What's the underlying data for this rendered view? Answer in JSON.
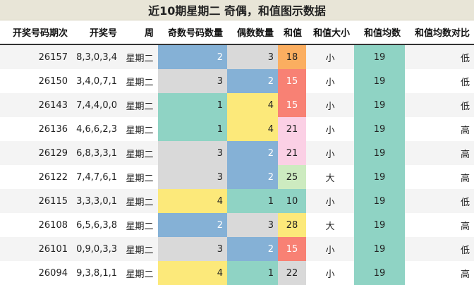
{
  "title": "近10期星期二 奇偶，和值图示数据",
  "headers": [
    "开奖号码期次",
    "开奖号",
    "周",
    "奇数号码数量",
    "偶数数量",
    "和值",
    "和值大小",
    "和值均数",
    "和值均数对比"
  ],
  "colors": {
    "count_1": "#8fd3c4",
    "count_2": "#85b1d6",
    "count_3": "#d9d9d9",
    "count_4": "#fce97a",
    "sum_avg": "#8fd3c4",
    "sum_10": "#8fd3c4",
    "sum_15": "#f88174",
    "sum_18": "#fbae60",
    "sum_21": "#fbd0e5",
    "sum_22": "#d9d9d9",
    "sum_25": "#cdebc0",
    "sum_28": "#fce97a"
  },
  "rows": [
    {
      "period": "26157",
      "numbers": "8,3,0,3,4",
      "weekday": "星期二",
      "odd": "2",
      "even": "3",
      "sum": "18",
      "size": "小",
      "avg": "19",
      "compare": "低"
    },
    {
      "period": "26150",
      "numbers": "3,4,0,7,1",
      "weekday": "星期二",
      "odd": "3",
      "even": "2",
      "sum": "15",
      "size": "小",
      "avg": "19",
      "compare": "低"
    },
    {
      "period": "26143",
      "numbers": "7,4,4,0,0",
      "weekday": "星期二",
      "odd": "1",
      "even": "4",
      "sum": "15",
      "size": "小",
      "avg": "19",
      "compare": "低"
    },
    {
      "period": "26136",
      "numbers": "4,6,6,2,3",
      "weekday": "星期二",
      "odd": "1",
      "even": "4",
      "sum": "21",
      "size": "小",
      "avg": "19",
      "compare": "高"
    },
    {
      "period": "26129",
      "numbers": "6,8,3,3,1",
      "weekday": "星期二",
      "odd": "3",
      "even": "2",
      "sum": "21",
      "size": "小",
      "avg": "19",
      "compare": "高"
    },
    {
      "period": "26122",
      "numbers": "7,4,7,6,1",
      "weekday": "星期二",
      "odd": "3",
      "even": "2",
      "sum": "25",
      "size": "大",
      "avg": "19",
      "compare": "高"
    },
    {
      "period": "26115",
      "numbers": "3,3,3,0,1",
      "weekday": "星期二",
      "odd": "4",
      "even": "1",
      "sum": "10",
      "size": "小",
      "avg": "19",
      "compare": "低"
    },
    {
      "period": "26108",
      "numbers": "6,5,6,3,8",
      "weekday": "星期二",
      "odd": "2",
      "even": "3",
      "sum": "28",
      "size": "大",
      "avg": "19",
      "compare": "高"
    },
    {
      "period": "26101",
      "numbers": "0,9,0,3,3",
      "weekday": "星期二",
      "odd": "3",
      "even": "2",
      "sum": "15",
      "size": "小",
      "avg": "19",
      "compare": "低"
    },
    {
      "period": "26094",
      "numbers": "9,3,8,1,1",
      "weekday": "星期二",
      "odd": "4",
      "even": "1",
      "sum": "22",
      "size": "小",
      "avg": "19",
      "compare": "高"
    }
  ]
}
